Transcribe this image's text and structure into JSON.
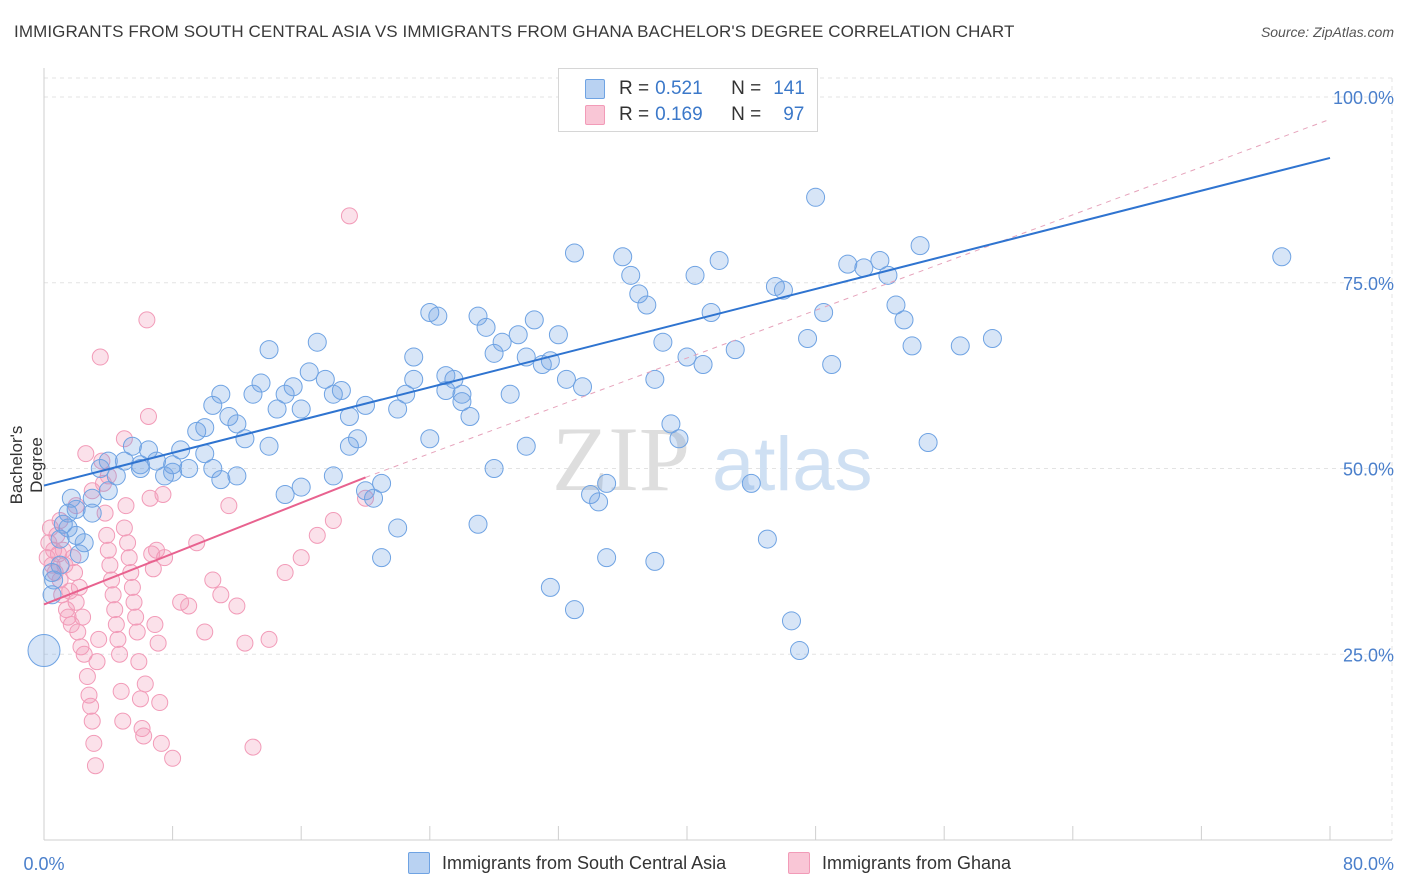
{
  "title": "IMMIGRANTS FROM SOUTH CENTRAL ASIA VS IMMIGRANTS FROM GHANA BACHELOR'S DEGREE CORRELATION CHART",
  "source": "Source: ZipAtlas.com",
  "watermark": {
    "zip": "ZIP",
    "atlas": "atlas"
  },
  "legend": {
    "r_label": "R =",
    "n_label": "N =",
    "series1": {
      "r": "0.521",
      "n": "141"
    },
    "series2": {
      "r": "0.169",
      "n": "97"
    }
  },
  "colors": {
    "blue": "#6fa3e3",
    "blue_line": "#2f74d0",
    "pink": "#f29bb8",
    "pink_line": "#e8628f",
    "axis_text": "#4a7fcb"
  },
  "chart_data": {
    "type": "scatter",
    "title": "IMMIGRANTS FROM SOUTH CENTRAL ASIA VS IMMIGRANTS FROM GHANA BACHELOR'S DEGREE CORRELATION CHART",
    "xlabel": "",
    "ylabel": "Bachelor's Degree",
    "xlim": [
      0,
      80
    ],
    "ylim": [
      0,
      100
    ],
    "x_tick_labels": [
      "0.0%",
      "80.0%"
    ],
    "y_tick_labels": [
      "25.0%",
      "50.0%",
      "75.0%",
      "100.0%"
    ],
    "y_ticks": [
      25,
      50,
      75,
      100
    ],
    "series": [
      {
        "name": "Immigrants from South Central Asia",
        "r": 0.521,
        "n": 141,
        "trend": {
          "x": [
            0,
            80
          ],
          "y": [
            47.7,
            91.8
          ],
          "style": "solid"
        },
        "points": [
          [
            0,
            25.5
          ],
          [
            0.5,
            33
          ],
          [
            0.6,
            35
          ],
          [
            1,
            40.5
          ],
          [
            1.2,
            42.5
          ],
          [
            1.5,
            44
          ],
          [
            1.7,
            46
          ],
          [
            2,
            41
          ],
          [
            2.2,
            38.5
          ],
          [
            2.5,
            40
          ],
          [
            3,
            46
          ],
          [
            3.5,
            50
          ],
          [
            4,
            51
          ],
          [
            4.5,
            49
          ],
          [
            5,
            51
          ],
          [
            5.5,
            53
          ],
          [
            6,
            50
          ],
          [
            6.5,
            52.5
          ],
          [
            7,
            51
          ],
          [
            7.5,
            49
          ],
          [
            8,
            50.5
          ],
          [
            8.5,
            52.5
          ],
          [
            9,
            50
          ],
          [
            9.5,
            55
          ],
          [
            10,
            55.5
          ],
          [
            10.5,
            58.5
          ],
          [
            11,
            60
          ],
          [
            11.5,
            57
          ],
          [
            12,
            56
          ],
          [
            12.5,
            54
          ],
          [
            13,
            60
          ],
          [
            13.5,
            61.5
          ],
          [
            14,
            66
          ],
          [
            14.5,
            58
          ],
          [
            15,
            60
          ],
          [
            15.5,
            61
          ],
          [
            16,
            58
          ],
          [
            16.5,
            63
          ],
          [
            17,
            67
          ],
          [
            17.5,
            62
          ],
          [
            18,
            60
          ],
          [
            18.5,
            60.5
          ],
          [
            19,
            57
          ],
          [
            19.5,
            54
          ],
          [
            20,
            47
          ],
          [
            20.5,
            46
          ],
          [
            21,
            48
          ],
          [
            22,
            58
          ],
          [
            22.5,
            60
          ],
          [
            23,
            62
          ],
          [
            24,
            71
          ],
          [
            24.5,
            70.5
          ],
          [
            25,
            60.5
          ],
          [
            25.5,
            62
          ],
          [
            26,
            59
          ],
          [
            26.5,
            57
          ],
          [
            27,
            70.5
          ],
          [
            27.5,
            69
          ],
          [
            28,
            65.5
          ],
          [
            28.5,
            67
          ],
          [
            29,
            60
          ],
          [
            29.5,
            68
          ],
          [
            30,
            65
          ],
          [
            30.5,
            70
          ],
          [
            31,
            64
          ],
          [
            31.5,
            64.5
          ],
          [
            32,
            68
          ],
          [
            32.5,
            62
          ],
          [
            33,
            79
          ],
          [
            33.5,
            61
          ],
          [
            34,
            46.5
          ],
          [
            34.5,
            45.5
          ],
          [
            35,
            48
          ],
          [
            36,
            78.5
          ],
          [
            36.5,
            76
          ],
          [
            37,
            73.5
          ],
          [
            37.5,
            72
          ],
          [
            38,
            62
          ],
          [
            38.5,
            67
          ],
          [
            39,
            56
          ],
          [
            39.5,
            54
          ],
          [
            40,
            65
          ],
          [
            40.5,
            76
          ],
          [
            41,
            64
          ],
          [
            41.5,
            71
          ],
          [
            42,
            78
          ],
          [
            43,
            66
          ],
          [
            44,
            48
          ],
          [
            45,
            40.5
          ],
          [
            45.5,
            74.5
          ],
          [
            46,
            74
          ],
          [
            46.5,
            29.5
          ],
          [
            47,
            25.5
          ],
          [
            47.5,
            67.5
          ],
          [
            48,
            86.5
          ],
          [
            48.5,
            71
          ],
          [
            49,
            64
          ],
          [
            50,
            77.5
          ],
          [
            51,
            77
          ],
          [
            52,
            78
          ],
          [
            52.5,
            76
          ],
          [
            53,
            72
          ],
          [
            53.5,
            70
          ],
          [
            54,
            66.5
          ],
          [
            54.5,
            80
          ],
          [
            55,
            53.5
          ],
          [
            57,
            66.5
          ],
          [
            59,
            67.5
          ],
          [
            38,
            37.5
          ],
          [
            35,
            38
          ],
          [
            30,
            53
          ],
          [
            28,
            50
          ],
          [
            27,
            42.5
          ],
          [
            26,
            60
          ],
          [
            24,
            54
          ],
          [
            22,
            42
          ],
          [
            21,
            38
          ],
          [
            19,
            53
          ],
          [
            16,
            47.5
          ],
          [
            14,
            53
          ],
          [
            12,
            49
          ],
          [
            10,
            52
          ],
          [
            8,
            49.5
          ],
          [
            6,
            50.5
          ],
          [
            4,
            47
          ],
          [
            3,
            44
          ],
          [
            2,
            44.5
          ],
          [
            1.5,
            42
          ],
          [
            1,
            37
          ],
          [
            0.5,
            36
          ],
          [
            31.5,
            34
          ],
          [
            33,
            31
          ],
          [
            10.5,
            50
          ],
          [
            11,
            48.5
          ],
          [
            15,
            46.5
          ],
          [
            18,
            49
          ],
          [
            20,
            58.5
          ],
          [
            23,
            65
          ],
          [
            25,
            62.5
          ],
          [
            77,
            78.5
          ]
        ]
      },
      {
        "name": "Immigrants from Ghana",
        "r": 0.169,
        "n": 97,
        "trend": {
          "x": [
            0,
            20
          ],
          "y": [
            31.7,
            48.8
          ],
          "style": "solid",
          "dashed_extension": {
            "x": [
              20,
              80
            ],
            "y": [
              48.8,
              97
            ]
          }
        },
        "points": [
          [
            0.2,
            38
          ],
          [
            0.3,
            40
          ],
          [
            0.4,
            42
          ],
          [
            0.5,
            37
          ],
          [
            0.6,
            39
          ],
          [
            0.7,
            36
          ],
          [
            0.8,
            41
          ],
          [
            0.9,
            38.5
          ],
          [
            1,
            35
          ],
          [
            1.1,
            33
          ],
          [
            1.2,
            39
          ],
          [
            1.3,
            37
          ],
          [
            1.4,
            31
          ],
          [
            1.5,
            30
          ],
          [
            1.6,
            33.5
          ],
          [
            1.7,
            29
          ],
          [
            1.8,
            38
          ],
          [
            1.9,
            36
          ],
          [
            2,
            32
          ],
          [
            2.1,
            28
          ],
          [
            2.2,
            34
          ],
          [
            2.3,
            26
          ],
          [
            2.4,
            30
          ],
          [
            2.5,
            25
          ],
          [
            2.6,
            52
          ],
          [
            2.7,
            22
          ],
          [
            2.8,
            19.5
          ],
          [
            2.9,
            18
          ],
          [
            3,
            16
          ],
          [
            3.1,
            13
          ],
          [
            3.2,
            10
          ],
          [
            3.3,
            24
          ],
          [
            3.4,
            27
          ],
          [
            3.5,
            65
          ],
          [
            3.6,
            51
          ],
          [
            3.7,
            48
          ],
          [
            3.8,
            44
          ],
          [
            3.9,
            41
          ],
          [
            4,
            39
          ],
          [
            4.1,
            37
          ],
          [
            4.2,
            35
          ],
          [
            4.3,
            33
          ],
          [
            4.4,
            31
          ],
          [
            4.5,
            29
          ],
          [
            4.6,
            27
          ],
          [
            4.7,
            25
          ],
          [
            4.8,
            20
          ],
          [
            4.9,
            16
          ],
          [
            5,
            54
          ],
          [
            5.1,
            45
          ],
          [
            5.2,
            40
          ],
          [
            5.3,
            38
          ],
          [
            5.4,
            36
          ],
          [
            5.5,
            34
          ],
          [
            5.6,
            32
          ],
          [
            5.7,
            30
          ],
          [
            5.8,
            28
          ],
          [
            5.9,
            24
          ],
          [
            6,
            19
          ],
          [
            6.1,
            15
          ],
          [
            6.2,
            14
          ],
          [
            6.3,
            21
          ],
          [
            6.4,
            70
          ],
          [
            6.5,
            57
          ],
          [
            6.6,
            46
          ],
          [
            6.7,
            38.5
          ],
          [
            6.8,
            36.5
          ],
          [
            6.9,
            29
          ],
          [
            7,
            39
          ],
          [
            7.1,
            26.5
          ],
          [
            7.2,
            18.5
          ],
          [
            7.3,
            13
          ],
          [
            7.4,
            46.5
          ],
          [
            7.5,
            38
          ],
          [
            8,
            11
          ],
          [
            8.5,
            32
          ],
          [
            9,
            31.5
          ],
          [
            9.5,
            40
          ],
          [
            10,
            28
          ],
          [
            10.5,
            35
          ],
          [
            11,
            33
          ],
          [
            11.5,
            45
          ],
          [
            12,
            31.5
          ],
          [
            12.5,
            26.5
          ],
          [
            13,
            12.5
          ],
          [
            14,
            27
          ],
          [
            15,
            36
          ],
          [
            16,
            38
          ],
          [
            17,
            41
          ],
          [
            18,
            43
          ],
          [
            19,
            84
          ],
          [
            20,
            46
          ],
          [
            1,
            43
          ],
          [
            2,
            45
          ],
          [
            3,
            47
          ],
          [
            4,
            49
          ],
          [
            5,
            42
          ]
        ]
      }
    ]
  },
  "bottom_legend": {
    "series1": "Immigrants from South Central Asia",
    "series2": "Immigrants from Ghana"
  }
}
